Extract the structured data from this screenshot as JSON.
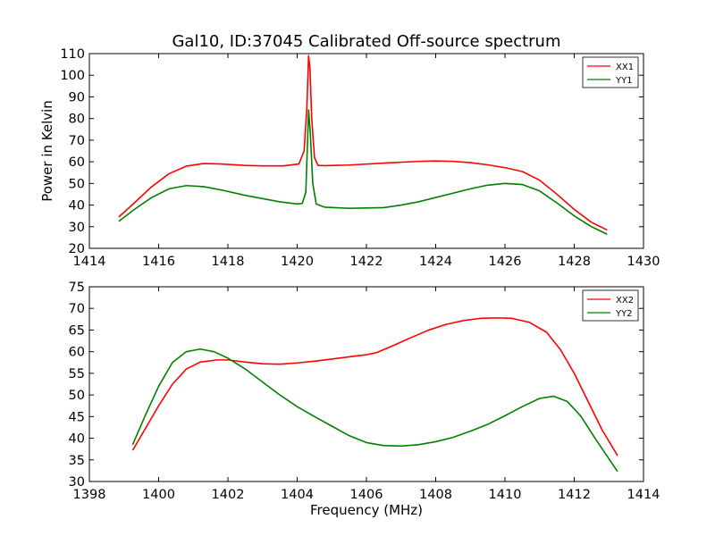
{
  "chart_data": [
    {
      "type": "line",
      "title": "Gal10, ID:37045 Calibrated Off-source spectrum",
      "xlabel": "",
      "ylabel": "Power in Kelvin",
      "xlim": [
        1414,
        1430
      ],
      "ylim": [
        20,
        110
      ],
      "xticks": [
        "1414",
        "1416",
        "1418",
        "1420",
        "1422",
        "1424",
        "1426",
        "1428",
        "1430"
      ],
      "yticks": [
        "20",
        "30",
        "40",
        "50",
        "60",
        "70",
        "80",
        "90",
        "100",
        "110"
      ],
      "grid": false,
      "legend_position": "top-right",
      "series": [
        {
          "name": "XX1",
          "color": "#ff0000",
          "x": [
            1414.85,
            1415.3,
            1415.8,
            1416.3,
            1416.8,
            1417.3,
            1417.8,
            1418.5,
            1419.0,
            1419.6,
            1420.05,
            1420.2,
            1420.28,
            1420.33,
            1420.37,
            1420.42,
            1420.5,
            1420.6,
            1420.8,
            1421.5,
            1422.5,
            1423.5,
            1424.0,
            1424.5,
            1425.0,
            1425.5,
            1426.0,
            1426.5,
            1427.0,
            1427.5,
            1428.0,
            1428.5,
            1428.95
          ],
          "y": [
            34.5,
            41,
            48.5,
            54.5,
            58,
            59.2,
            59,
            58.3,
            58.1,
            58.1,
            59,
            65,
            85,
            109,
            103,
            80,
            62,
            58.3,
            58.2,
            58.5,
            59.4,
            60.2,
            60.4,
            60.2,
            59.6,
            58.6,
            57.3,
            55.5,
            51.5,
            45,
            38,
            32,
            28.5
          ]
        },
        {
          "name": "YY1",
          "color": "#008000",
          "x": [
            1414.85,
            1415.3,
            1415.8,
            1416.3,
            1416.8,
            1417.3,
            1417.8,
            1418.5,
            1419.0,
            1419.5,
            1420.0,
            1420.15,
            1420.25,
            1420.33,
            1420.38,
            1420.45,
            1420.55,
            1420.8,
            1421.5,
            1422.5,
            1423.0,
            1423.5,
            1424.0,
            1424.5,
            1425.0,
            1425.5,
            1426.0,
            1426.5,
            1427.0,
            1427.5,
            1428.0,
            1428.5,
            1428.95
          ],
          "y": [
            32.5,
            38,
            43.5,
            47.5,
            49,
            48.5,
            47,
            44.5,
            43,
            41.5,
            40.5,
            40.8,
            46,
            84,
            73,
            50,
            40.5,
            39,
            38.5,
            38.8,
            40,
            41.5,
            43.5,
            45.5,
            47.5,
            49.2,
            50,
            49.5,
            46.5,
            41,
            35,
            30,
            26.5
          ]
        }
      ]
    },
    {
      "type": "line",
      "title": "",
      "xlabel": "Frequency (MHz)",
      "ylabel": "",
      "xlim": [
        1398,
        1414
      ],
      "ylim": [
        30,
        75
      ],
      "xticks": [
        "1398",
        "1400",
        "1402",
        "1404",
        "1406",
        "1408",
        "1410",
        "1412",
        "1414"
      ],
      "yticks": [
        "30",
        "35",
        "40",
        "45",
        "50",
        "55",
        "60",
        "65",
        "70",
        "75"
      ],
      "grid": false,
      "legend_position": "top-right",
      "series": [
        {
          "name": "XX2",
          "color": "#ff0000",
          "x": [
            1399.25,
            1399.6,
            1400.0,
            1400.4,
            1400.8,
            1401.2,
            1401.7,
            1402.0,
            1402.5,
            1403.0,
            1403.5,
            1404.0,
            1404.5,
            1405.0,
            1405.5,
            1406.0,
            1406.3,
            1406.8,
            1407.3,
            1407.8,
            1408.3,
            1408.8,
            1409.3,
            1409.8,
            1410.2,
            1410.7,
            1411.2,
            1411.6,
            1412.0,
            1412.4,
            1412.8,
            1413.25
          ],
          "y": [
            37.2,
            42,
            47.5,
            52.5,
            56,
            57.6,
            58.1,
            58.1,
            57.6,
            57.2,
            57.1,
            57.4,
            57.8,
            58.3,
            58.8,
            59.3,
            59.8,
            61.5,
            63.3,
            65,
            66.3,
            67.2,
            67.7,
            67.8,
            67.7,
            66.8,
            64.5,
            60.5,
            55,
            48.5,
            42,
            36
          ]
        },
        {
          "name": "YY2",
          "color": "#008000",
          "x": [
            1399.25,
            1399.6,
            1400.0,
            1400.4,
            1400.8,
            1401.2,
            1401.6,
            1402.0,
            1402.5,
            1403.0,
            1403.5,
            1404.0,
            1404.5,
            1405.0,
            1405.5,
            1406.0,
            1406.5,
            1407.0,
            1407.5,
            1408.0,
            1408.5,
            1409.0,
            1409.5,
            1410.0,
            1410.5,
            1411.0,
            1411.4,
            1411.8,
            1412.2,
            1412.6,
            1413.25
          ],
          "y": [
            38.5,
            45,
            52,
            57.5,
            60,
            60.6,
            60,
            58.5,
            56,
            53,
            50,
            47.3,
            45,
            42.8,
            40.6,
            39,
            38.3,
            38.2,
            38.5,
            39.2,
            40.2,
            41.6,
            43.2,
            45.2,
            47.3,
            49.2,
            49.7,
            48.5,
            45,
            40,
            32.3
          ]
        }
      ]
    }
  ]
}
